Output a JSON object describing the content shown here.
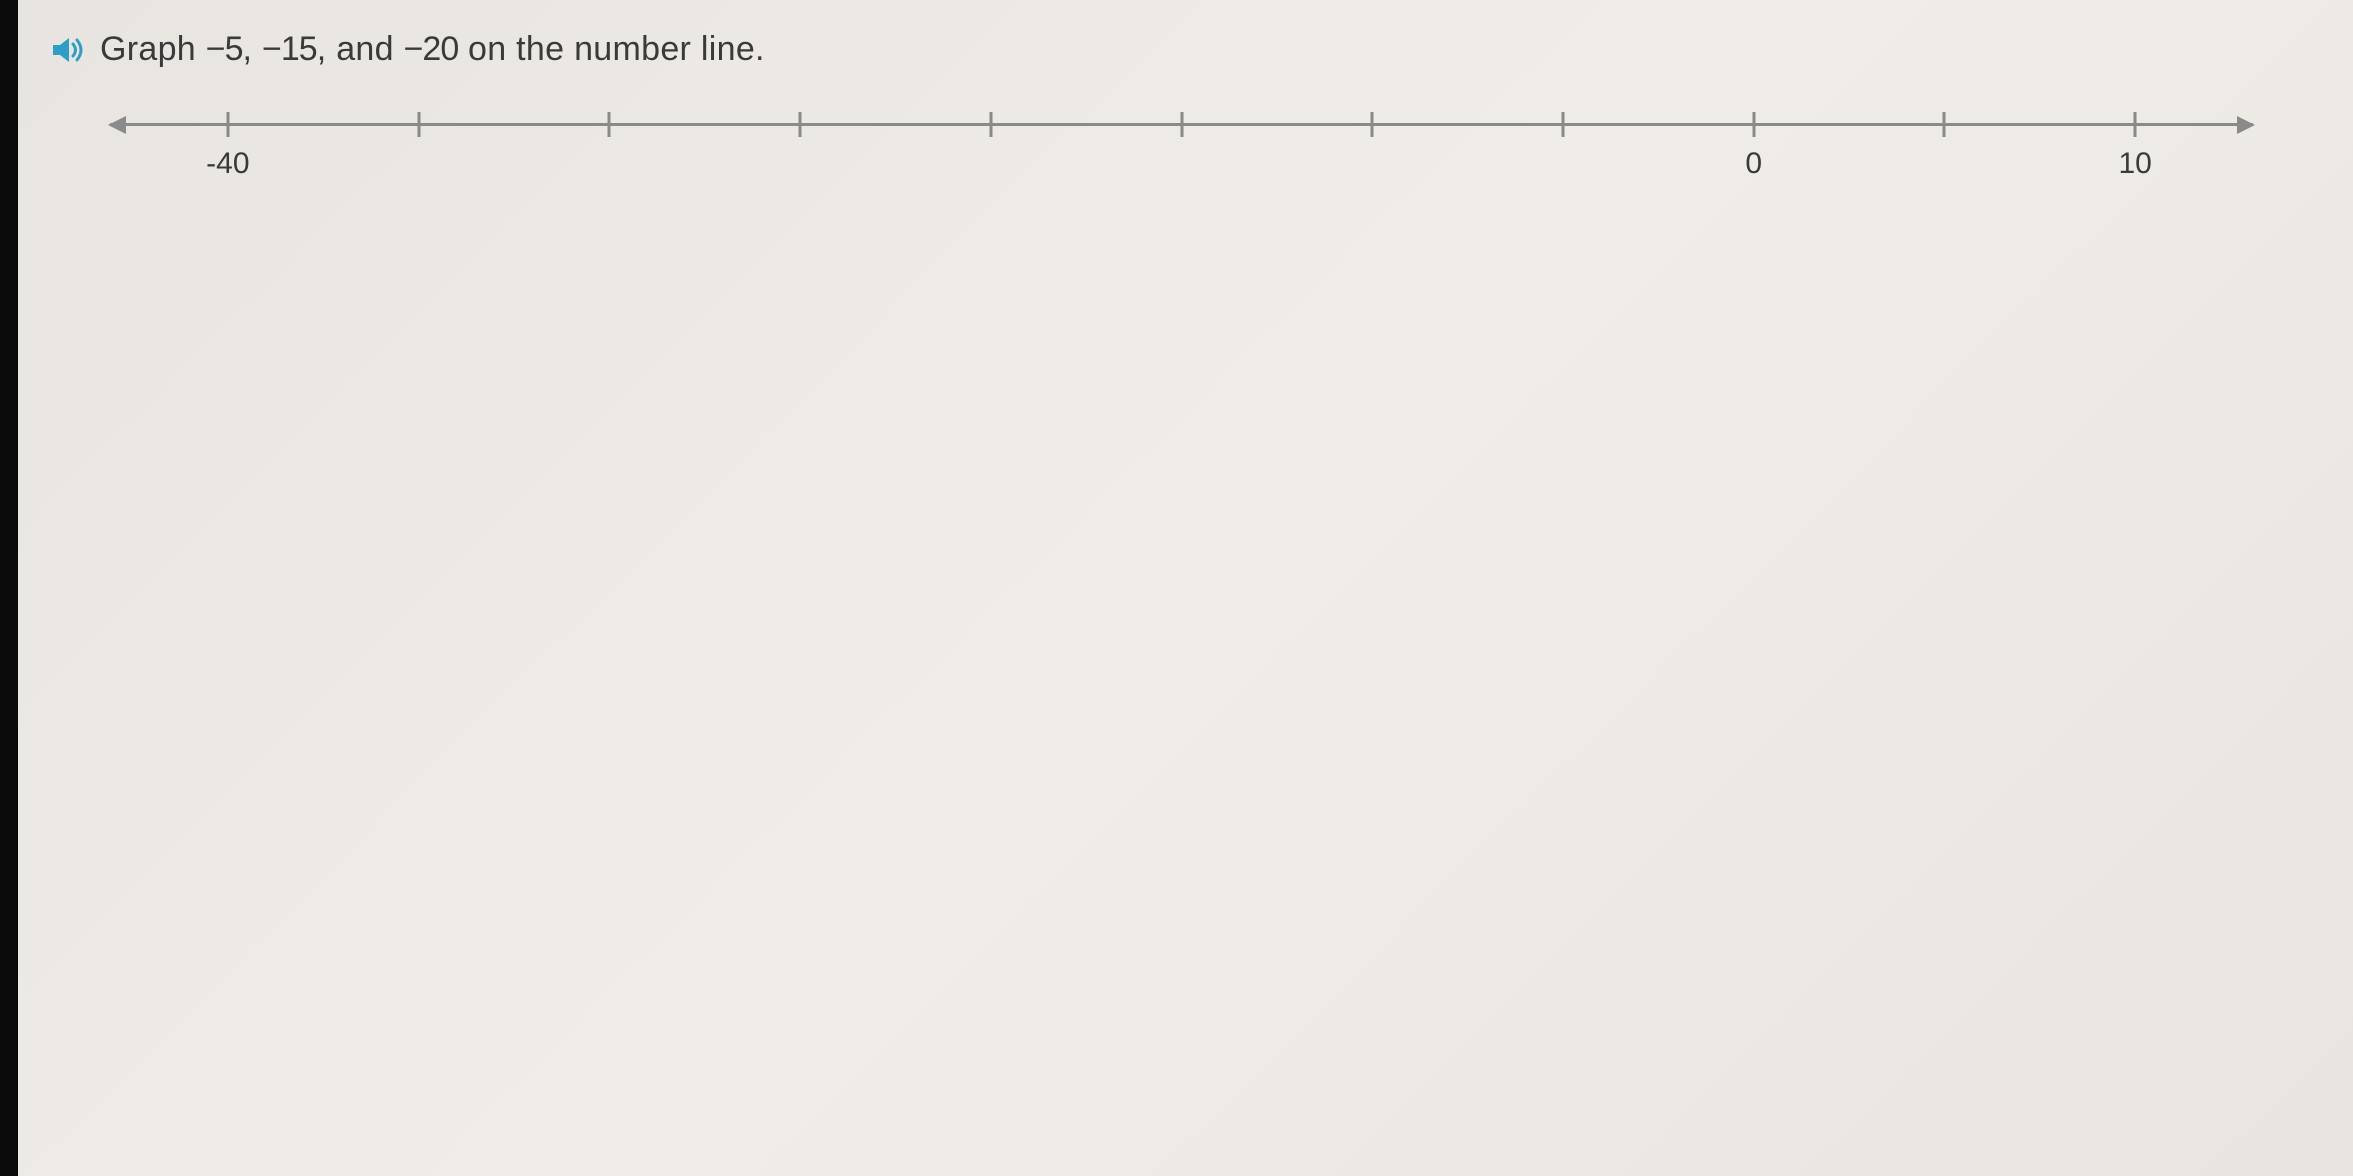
{
  "instruction": {
    "text_parts": [
      "Graph ",
      "−5",
      ", ",
      "−15",
      ", and ",
      "−20",
      " on the number line."
    ],
    "speaker_color": "#2e9ec9"
  },
  "number_line": {
    "type": "number-line",
    "axis_color": "#8a8a8a",
    "label_color": "#3a3a3a",
    "label_fontsize": 30,
    "range_min": -45,
    "range_max": 15,
    "tick_start": -40,
    "tick_end": 10,
    "tick_step": 5,
    "tick_values": [
      -40,
      -35,
      -30,
      -25,
      -20,
      -15,
      -10,
      -5,
      0,
      5,
      10
    ],
    "labeled_ticks": {
      "-40": "-40",
      "0": "0",
      "10": "10"
    },
    "arrow_left_pct": 0,
    "arrow_right_pct": 100,
    "tick_region_start_pct": 5.5,
    "tick_region_end_pct": 94.5
  },
  "colors": {
    "background": "#ece8e4",
    "text": "#3a3a3a",
    "axis": "#8a8a8a",
    "accent": "#2e9ec9"
  }
}
